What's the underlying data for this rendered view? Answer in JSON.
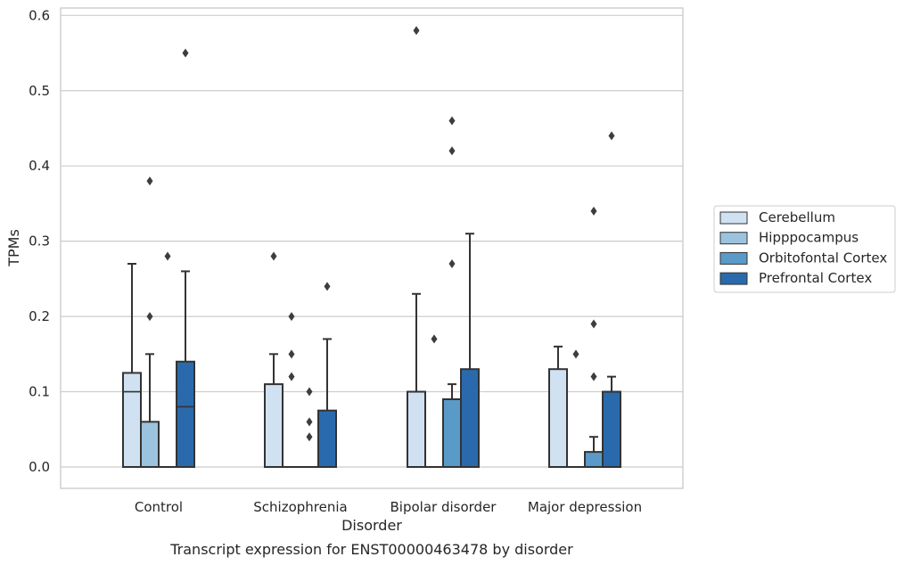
{
  "chart_data": {
    "type": "box",
    "xlabel": "Disorder",
    "ylabel": "TPMs",
    "caption": "Transcript expression for ENST00000463478 by disorder",
    "ylim": [
      -0.03,
      0.61
    ],
    "yticks": [
      "0.0",
      "0.1",
      "0.2",
      "0.3",
      "0.4",
      "0.5",
      "0.6"
    ],
    "grid": "horizontal",
    "legend_position": "right",
    "categories": [
      "Control",
      "Schizophrenia",
      "Bipolar disorder",
      "Major depression"
    ],
    "series": [
      {
        "name": "Cerebellum",
        "color": "#d0e1f2",
        "boxes": [
          {
            "q1": 0.0,
            "median": 0.1,
            "q3": 0.125,
            "whisker_low": 0.0,
            "whisker_high": 0.27,
            "outliers": []
          },
          {
            "q1": 0.0,
            "median": 0.0,
            "q3": 0.11,
            "whisker_low": 0.0,
            "whisker_high": 0.15,
            "outliers": [
              0.28
            ]
          },
          {
            "q1": 0.0,
            "median": 0.0,
            "q3": 0.1,
            "whisker_low": 0.0,
            "whisker_high": 0.23,
            "outliers": [
              0.58
            ]
          },
          {
            "q1": 0.0,
            "median": 0.0,
            "q3": 0.13,
            "whisker_low": 0.0,
            "whisker_high": 0.16,
            "outliers": []
          }
        ]
      },
      {
        "name": "Hipppocampus",
        "color": "#9cc3dd",
        "boxes": [
          {
            "q1": 0.0,
            "median": 0.0,
            "q3": 0.06,
            "whisker_low": 0.0,
            "whisker_high": 0.15,
            "outliers": [
              0.2,
              0.38
            ]
          },
          {
            "q1": 0.0,
            "median": 0.0,
            "q3": 0.0,
            "whisker_low": 0.0,
            "whisker_high": 0.0,
            "outliers": [
              0.12,
              0.15,
              0.2
            ]
          },
          {
            "q1": 0.0,
            "median": 0.0,
            "q3": 0.0,
            "whisker_low": 0.0,
            "whisker_high": 0.0,
            "outliers": [
              0.17
            ]
          },
          {
            "q1": 0.0,
            "median": 0.0,
            "q3": 0.0,
            "whisker_low": 0.0,
            "whisker_high": 0.0,
            "outliers": [
              0.15
            ]
          }
        ]
      },
      {
        "name": "Orbitofontal Cortex",
        "color": "#5a9ac8",
        "boxes": [
          {
            "q1": 0.0,
            "median": 0.0,
            "q3": 0.0,
            "whisker_low": 0.0,
            "whisker_high": 0.0,
            "outliers": [
              0.28
            ]
          },
          {
            "q1": 0.0,
            "median": 0.0,
            "q3": 0.0,
            "whisker_low": 0.0,
            "whisker_high": 0.0,
            "outliers": [
              0.04,
              0.06,
              0.1
            ]
          },
          {
            "q1": 0.0,
            "median": 0.09,
            "q3": 0.09,
            "whisker_low": 0.0,
            "whisker_high": 0.11,
            "outliers": [
              0.27,
              0.42,
              0.46
            ]
          },
          {
            "q1": 0.0,
            "median": 0.0,
            "q3": 0.02,
            "whisker_low": 0.0,
            "whisker_high": 0.04,
            "outliers": [
              0.12,
              0.19,
              0.34
            ]
          }
        ]
      },
      {
        "name": "Prefrontal Cortex",
        "color": "#2a6aac",
        "boxes": [
          {
            "q1": 0.0,
            "median": 0.08,
            "q3": 0.14,
            "whisker_low": 0.0,
            "whisker_high": 0.26,
            "outliers": [
              0.55
            ]
          },
          {
            "q1": 0.0,
            "median": 0.0,
            "q3": 0.075,
            "whisker_low": 0.0,
            "whisker_high": 0.17,
            "outliers": [
              0.24
            ]
          },
          {
            "q1": 0.0,
            "median": 0.0,
            "q3": 0.13,
            "whisker_low": 0.0,
            "whisker_high": 0.31,
            "outliers": []
          },
          {
            "q1": 0.0,
            "median": 0.0,
            "q3": 0.1,
            "whisker_low": 0.0,
            "whisker_high": 0.12,
            "outliers": [
              0.44
            ]
          }
        ]
      }
    ]
  }
}
